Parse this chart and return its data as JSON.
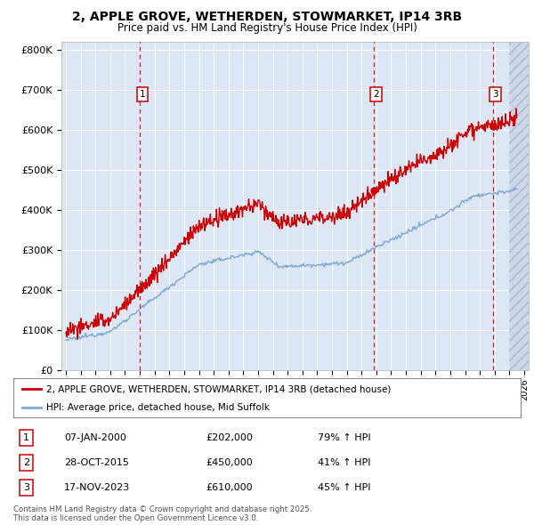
{
  "title": "2, APPLE GROVE, WETHERDEN, STOWMARKET, IP14 3RB",
  "subtitle": "Price paid vs. HM Land Registry's House Price Index (HPI)",
  "red_label": "2, APPLE GROVE, WETHERDEN, STOWMARKET, IP14 3RB (detached house)",
  "blue_label": "HPI: Average price, detached house, Mid Suffolk",
  "footer": "Contains HM Land Registry data © Crown copyright and database right 2025.\nThis data is licensed under the Open Government Licence v3.0.",
  "sale_prices": [
    202000,
    450000,
    610000
  ],
  "sale_labels": [
    "07-JAN-2000",
    "28-OCT-2015",
    "17-NOV-2023"
  ],
  "sale_pcts": [
    "79% ↑ HPI",
    "41% ↑ HPI",
    "45% ↑ HPI"
  ],
  "sale_times": [
    2000.02,
    2015.83,
    2023.88
  ],
  "ylim": [
    0,
    820000
  ],
  "xlim_start": 1994.7,
  "xlim_end": 2026.3,
  "red_color": "#cc0000",
  "blue_color": "#7aaad0",
  "plot_bg": "#dce6f5",
  "hatch_color": "#c8d4e8",
  "grid_color": "#ffffff",
  "border_color": "#aaaaaa"
}
